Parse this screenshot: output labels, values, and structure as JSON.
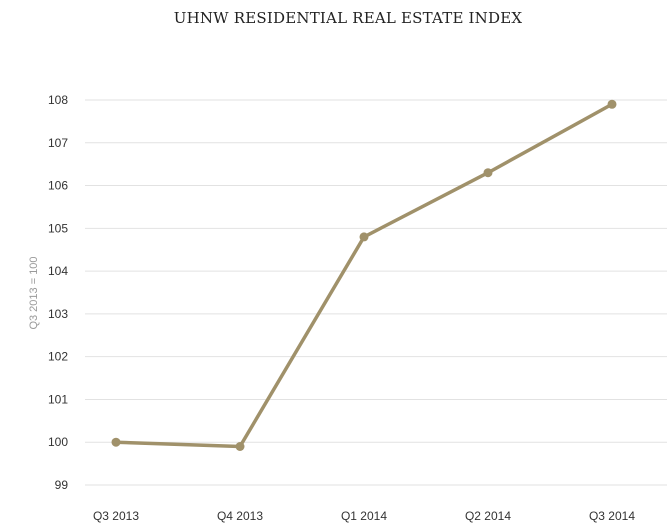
{
  "chart_data": {
    "type": "line",
    "title": "UHNW RESIDENTIAL REAL ESTATE INDEX",
    "xlabel": "",
    "ylabel": "Q3 2013 = 100",
    "categories": [
      "Q3 2013",
      "Q4 2013",
      "Q1 2014",
      "Q2 2014",
      "Q3 2014"
    ],
    "series": [
      {
        "values": [
          100.0,
          99.9,
          104.8,
          106.3,
          107.9
        ]
      }
    ],
    "yticks": [
      99,
      100,
      101,
      102,
      103,
      104,
      105,
      106,
      107,
      108
    ],
    "ylim": [
      99,
      108.4
    ],
    "grid": true,
    "legend": "none",
    "colors": {
      "line": "#a0916a",
      "grid": "#e2e2e2",
      "text": "#333333",
      "axis_label": "#9a9a9a"
    }
  }
}
